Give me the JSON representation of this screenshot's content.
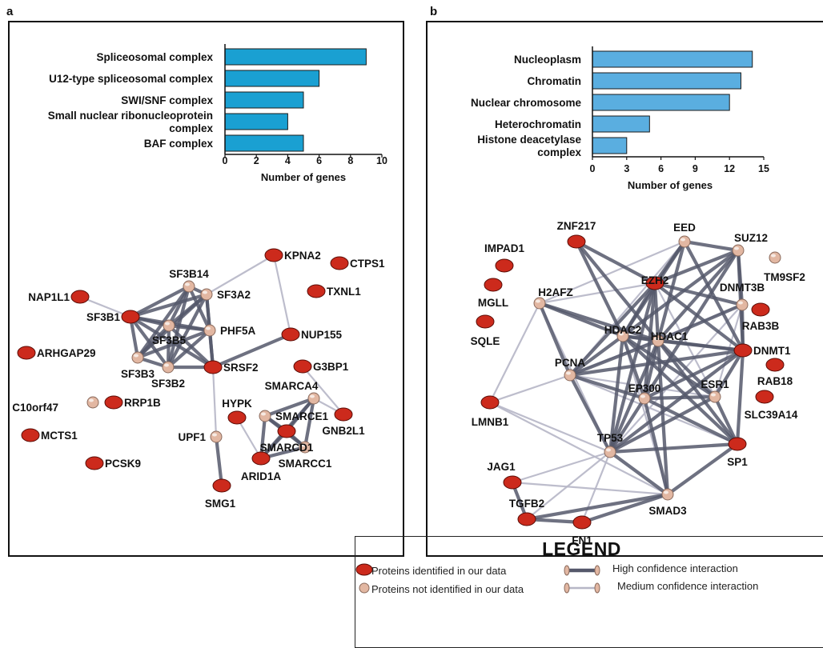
{
  "panels": {
    "a": {
      "letter": "a",
      "chart_data": {
        "type": "bar",
        "orientation": "horizontal",
        "categories": [
          "Spliceosomal complex",
          "U12-type spliceosomal complex",
          "SWI/SNF complex",
          "Small nuclear ribonucleoprotein complex",
          "BAF complex"
        ],
        "category_lines": [
          [
            "Spliceosomal complex"
          ],
          [
            "U12-type spliceosomal complex"
          ],
          [
            "SWI/SNF complex"
          ],
          [
            "Small nuclear ribonucleoprotein",
            "complex"
          ],
          [
            "BAF complex"
          ]
        ],
        "values": [
          9,
          6,
          5,
          4,
          5
        ],
        "xlabel": "Number of genes",
        "xlim": [
          0,
          10
        ],
        "xticks": [
          0,
          2,
          4,
          6,
          8,
          10
        ],
        "bar_color": "#1aa0d2"
      },
      "network": {
        "nodes": [
          {
            "id": "KPNA2",
            "type": "identified"
          },
          {
            "id": "CTPS1",
            "type": "identified"
          },
          {
            "id": "SF3B14",
            "type": "not_identified"
          },
          {
            "id": "SF3A2",
            "type": "not_identified"
          },
          {
            "id": "TXNL1",
            "type": "identified"
          },
          {
            "id": "NAP1L1",
            "type": "identified"
          },
          {
            "id": "SF3B1",
            "type": "identified"
          },
          {
            "id": "SF3B5",
            "type": "not_identified"
          },
          {
            "id": "PHF5A",
            "type": "not_identified"
          },
          {
            "id": "NUP155",
            "type": "identified"
          },
          {
            "id": "ARHGAP29",
            "type": "identified"
          },
          {
            "id": "SF3B3",
            "type": "not_identified"
          },
          {
            "id": "SF3B2",
            "type": "not_identified"
          },
          {
            "id": "SRSF2",
            "type": "identified"
          },
          {
            "id": "G3BP1",
            "type": "identified"
          },
          {
            "id": "SMARCA4",
            "type": "not_identified"
          },
          {
            "id": "C10orf47",
            "type": "not_identified"
          },
          {
            "id": "RRP1B",
            "type": "identified"
          },
          {
            "id": "HYPK",
            "type": "identified"
          },
          {
            "id": "SMARCE1",
            "type": "not_identified"
          },
          {
            "id": "GNB2L1",
            "type": "identified"
          },
          {
            "id": "UPF1",
            "type": "not_identified"
          },
          {
            "id": "MCTS1",
            "type": "identified"
          },
          {
            "id": "SMARCD1",
            "type": "identified"
          },
          {
            "id": "SMARCC1",
            "type": "not_identified"
          },
          {
            "id": "ARID1A",
            "type": "identified"
          },
          {
            "id": "PCSK9",
            "type": "identified"
          },
          {
            "id": "SMG1",
            "type": "identified"
          }
        ],
        "edges": [
          [
            "SF3B1",
            "SF3B14",
            "high"
          ],
          [
            "SF3B1",
            "SF3A2",
            "high"
          ],
          [
            "SF3B1",
            "SF3B5",
            "high"
          ],
          [
            "SF3B1",
            "PHF5A",
            "high"
          ],
          [
            "SF3B1",
            "SF3B3",
            "high"
          ],
          [
            "SF3B1",
            "SF3B2",
            "high"
          ],
          [
            "SF3B1",
            "SRSF2",
            "high"
          ],
          [
            "SF3B14",
            "SF3A2",
            "high"
          ],
          [
            "SF3B14",
            "SF3B5",
            "high"
          ],
          [
            "SF3B14",
            "PHF5A",
            "high"
          ],
          [
            "SF3B14",
            "SF3B3",
            "high"
          ],
          [
            "SF3B14",
            "SF3B2",
            "high"
          ],
          [
            "SF3A2",
            "SF3B5",
            "high"
          ],
          [
            "SF3A2",
            "PHF5A",
            "high"
          ],
          [
            "SF3A2",
            "SF3B3",
            "high"
          ],
          [
            "SF3A2",
            "SF3B2",
            "high"
          ],
          [
            "SF3A2",
            "SRSF2",
            "high"
          ],
          [
            "SF3B5",
            "PHF5A",
            "high"
          ],
          [
            "SF3B5",
            "SF3B3",
            "high"
          ],
          [
            "SF3B5",
            "SF3B2",
            "high"
          ],
          [
            "SF3B5",
            "SRSF2",
            "high"
          ],
          [
            "PHF5A",
            "SF3B3",
            "high"
          ],
          [
            "PHF5A",
            "SF3B2",
            "high"
          ],
          [
            "PHF5A",
            "SRSF2",
            "high"
          ],
          [
            "SF3B3",
            "SF3B2",
            "high"
          ],
          [
            "SF3B2",
            "SRSF2",
            "high"
          ],
          [
            "SRSF2",
            "NUP155",
            "high"
          ],
          [
            "SRSF2",
            "UPF1",
            "medium"
          ],
          [
            "NAP1L1",
            "SF3B1",
            "medium"
          ],
          [
            "KPNA2",
            "SF3A2",
            "medium"
          ],
          [
            "KPNA2",
            "NUP155",
            "medium"
          ],
          [
            "G3BP1",
            "GNB2L1",
            "medium"
          ],
          [
            "SMARCA4",
            "GNB2L1",
            "medium"
          ],
          [
            "UPF1",
            "SMG1",
            "high"
          ],
          [
            "HYPK",
            "ARID1A",
            "medium"
          ],
          [
            "SMARCA4",
            "SMARCE1",
            "high"
          ],
          [
            "SMARCA4",
            "SMARCD1",
            "high"
          ],
          [
            "SMARCA4",
            "SMARCC1",
            "high"
          ],
          [
            "SMARCA4",
            "ARID1A",
            "high"
          ],
          [
            "SMARCE1",
            "SMARCD1",
            "high"
          ],
          [
            "SMARCE1",
            "SMARCC1",
            "high"
          ],
          [
            "SMARCE1",
            "ARID1A",
            "high"
          ],
          [
            "SMARCD1",
            "SMARCC1",
            "high"
          ],
          [
            "SMARCD1",
            "ARID1A",
            "high"
          ],
          [
            "SMARCC1",
            "ARID1A",
            "high"
          ]
        ]
      }
    },
    "b": {
      "letter": "b",
      "chart_data": {
        "type": "bar",
        "orientation": "horizontal",
        "categories": [
          "Nucleoplasm",
          "Chromatin",
          "Nuclear chromosome",
          "Heterochromatin",
          "Histone deacetylase complex"
        ],
        "category_lines": [
          [
            "Nucleoplasm"
          ],
          [
            "Chromatin"
          ],
          [
            "Nuclear chromosome"
          ],
          [
            "Heterochromatin"
          ],
          [
            "Histone deacetylase",
            "complex"
          ]
        ],
        "values": [
          14,
          13,
          12,
          5,
          3
        ],
        "xlabel": "Number of genes",
        "xlim": [
          0,
          15
        ],
        "xticks": [
          0,
          3,
          6,
          9,
          12,
          15
        ],
        "bar_color": "#5aaee0"
      },
      "network": {
        "nodes": [
          {
            "id": "ZNF217",
            "type": "identified"
          },
          {
            "id": "EED",
            "type": "not_identified"
          },
          {
            "id": "IMPAD1",
            "type": "identified"
          },
          {
            "id": "SUZ12",
            "type": "not_identified"
          },
          {
            "id": "TM9SF2",
            "type": "not_identified"
          },
          {
            "id": "MGLL",
            "type": "identified"
          },
          {
            "id": "H2AFZ",
            "type": "not_identified"
          },
          {
            "id": "EZH2",
            "type": "identified"
          },
          {
            "id": "DNMT3B",
            "type": "not_identified"
          },
          {
            "id": "RAB3B",
            "type": "identified"
          },
          {
            "id": "SQLE",
            "type": "identified"
          },
          {
            "id": "HDAC2",
            "type": "not_identified"
          },
          {
            "id": "HDAC1",
            "type": "not_identified"
          },
          {
            "id": "DNMT1",
            "type": "identified"
          },
          {
            "id": "PCNA",
            "type": "not_identified"
          },
          {
            "id": "RAB18",
            "type": "identified"
          },
          {
            "id": "ESR1",
            "type": "not_identified"
          },
          {
            "id": "SLC39A14",
            "type": "identified"
          },
          {
            "id": "LMNB1",
            "type": "identified"
          },
          {
            "id": "EP300",
            "type": "not_identified"
          },
          {
            "id": "TP53",
            "type": "not_identified"
          },
          {
            "id": "SP1",
            "type": "identified"
          },
          {
            "id": "JAG1",
            "type": "identified"
          },
          {
            "id": "TGFB2",
            "type": "identified"
          },
          {
            "id": "SMAD3",
            "type": "not_identified"
          },
          {
            "id": "FN1",
            "type": "identified"
          }
        ],
        "edges": [
          [
            "EZH2",
            "EED",
            "high"
          ],
          [
            "EZH2",
            "SUZ12",
            "high"
          ],
          [
            "EED",
            "SUZ12",
            "high"
          ],
          [
            "EZH2",
            "HDAC1",
            "high"
          ],
          [
            "EZH2",
            "HDAC2",
            "high"
          ],
          [
            "EZH2",
            "DNMT1",
            "high"
          ],
          [
            "EZH2",
            "DNMT3B",
            "high"
          ],
          [
            "EZH2",
            "H2AFZ",
            "medium"
          ],
          [
            "EZH2",
            "PCNA",
            "high"
          ],
          [
            "EZH2",
            "TP53",
            "high"
          ],
          [
            "EZH2",
            "EP300",
            "high"
          ],
          [
            "EZH2",
            "ESR1",
            "medium"
          ],
          [
            "EED",
            "HDAC1",
            "high"
          ],
          [
            "EED",
            "HDAC2",
            "high"
          ],
          [
            "EED",
            "DNMT1",
            "high"
          ],
          [
            "EED",
            "H2AFZ",
            "medium"
          ],
          [
            "EED",
            "PCNA",
            "medium"
          ],
          [
            "SUZ12",
            "HDAC1",
            "high"
          ],
          [
            "SUZ12",
            "HDAC2",
            "high"
          ],
          [
            "SUZ12",
            "DNMT1",
            "high"
          ],
          [
            "SUZ12",
            "DNMT3B",
            "high"
          ],
          [
            "SUZ12",
            "EP300",
            "high"
          ],
          [
            "ZNF217",
            "EZH2",
            "high"
          ],
          [
            "ZNF217",
            "HDAC2",
            "high"
          ],
          [
            "ZNF217",
            "HDAC1",
            "high"
          ],
          [
            "H2AFZ",
            "HDAC1",
            "high"
          ],
          [
            "H2AFZ",
            "HDAC2",
            "high"
          ],
          [
            "H2AFZ",
            "PCNA",
            "high"
          ],
          [
            "H2AFZ",
            "LMNB1",
            "medium"
          ],
          [
            "H2AFZ",
            "TP53",
            "medium"
          ],
          [
            "HDAC1",
            "HDAC2",
            "high"
          ],
          [
            "HDAC1",
            "DNMT1",
            "high"
          ],
          [
            "HDAC1",
            "PCNA",
            "high"
          ],
          [
            "HDAC1",
            "TP53",
            "high"
          ],
          [
            "HDAC1",
            "EP300",
            "high"
          ],
          [
            "HDAC1",
            "ESR1",
            "high"
          ],
          [
            "HDAC1",
            "SP1",
            "high"
          ],
          [
            "HDAC1",
            "DNMT3B",
            "high"
          ],
          [
            "HDAC1",
            "SMAD3",
            "high"
          ],
          [
            "HDAC2",
            "DNMT1",
            "high"
          ],
          [
            "HDAC2",
            "PCNA",
            "high"
          ],
          [
            "HDAC2",
            "TP53",
            "high"
          ],
          [
            "HDAC2",
            "EP300",
            "high"
          ],
          [
            "HDAC2",
            "ESR1",
            "high"
          ],
          [
            "HDAC2",
            "SP1",
            "high"
          ],
          [
            "HDAC2",
            "SMAD3",
            "medium"
          ],
          [
            "DNMT1",
            "DNMT3B",
            "high"
          ],
          [
            "DNMT1",
            "PCNA",
            "high"
          ],
          [
            "DNMT1",
            "TP53",
            "high"
          ],
          [
            "DNMT1",
            "EP300",
            "high"
          ],
          [
            "DNMT1",
            "ESR1",
            "high"
          ],
          [
            "DNMT1",
            "SP1",
            "high"
          ],
          [
            "DNMT3B",
            "PCNA",
            "medium"
          ],
          [
            "DNMT3B",
            "ESR1",
            "medium"
          ],
          [
            "DNMT3B",
            "TP53",
            "medium"
          ],
          [
            "PCNA",
            "TP53",
            "high"
          ],
          [
            "PCNA",
            "EP300",
            "high"
          ],
          [
            "PCNA",
            "LMNB1",
            "medium"
          ],
          [
            "PCNA",
            "ESR1",
            "medium"
          ],
          [
            "PCNA",
            "SP1",
            "medium"
          ],
          [
            "EP300",
            "TP53",
            "high"
          ],
          [
            "EP300",
            "ESR1",
            "high"
          ],
          [
            "EP300",
            "SP1",
            "high"
          ],
          [
            "EP300",
            "SMAD3",
            "high"
          ],
          [
            "TP53",
            "ESR1",
            "high"
          ],
          [
            "TP53",
            "SP1",
            "high"
          ],
          [
            "TP53",
            "SMAD3",
            "high"
          ],
          [
            "TP53",
            "LMNB1",
            "medium"
          ],
          [
            "TP53",
            "JAG1",
            "medium"
          ],
          [
            "TP53",
            "TGFB2",
            "medium"
          ],
          [
            "TP53",
            "FN1",
            "medium"
          ],
          [
            "ESR1",
            "SP1",
            "high"
          ],
          [
            "SP1",
            "SMAD3",
            "high"
          ],
          [
            "SMAD3",
            "TGFB2",
            "high"
          ],
          [
            "SMAD3",
            "FN1",
            "high"
          ],
          [
            "SMAD3",
            "JAG1",
            "medium"
          ],
          [
            "TGFB2",
            "FN1",
            "high"
          ],
          [
            "JAG1",
            "TGFB2",
            "high"
          ],
          [
            "LMNB1",
            "SMAD3",
            "medium"
          ]
        ]
      }
    }
  },
  "legend": {
    "title": "LEGEND",
    "identified": "Proteins identified in our data",
    "not_identified": "Proteins not identified in our data",
    "high": "High confidence interaction",
    "medium": "Medium confidence interaction"
  },
  "colors": {
    "node_identified": "#cc2a1c",
    "node_not_identified": "#e2b7a2",
    "edge_high": "#55586b",
    "edge_medium": "#b6b6c6"
  }
}
